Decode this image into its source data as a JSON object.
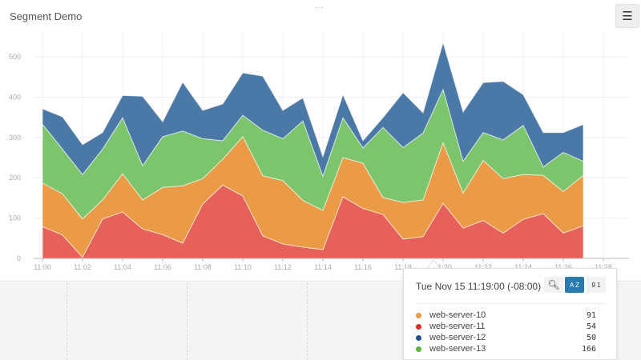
{
  "header": {
    "title": "Segment Demo",
    "menu_icon": "hamburger-icon",
    "drag_handle": "..."
  },
  "colors": {
    "web-server-10": "#eb9a45",
    "web-server-11": "#e8605a",
    "web-server-12": "#4a79a7",
    "web-server-13": "#7dc56c"
  },
  "chart_data": {
    "type": "area",
    "stacked": true,
    "grid": true,
    "x": [
      "11:00",
      "11:01",
      "11:02",
      "11:03",
      "11:04",
      "11:05",
      "11:06",
      "11:07",
      "11:08",
      "11:09",
      "11:10",
      "11:11",
      "11:12",
      "11:13",
      "11:14",
      "11:15",
      "11:16",
      "11:17",
      "11:18",
      "11:19",
      "11:20",
      "11:21",
      "11:22",
      "11:23",
      "11:24",
      "11:25",
      "11:26",
      "11:27"
    ],
    "x_ticks": [
      "11:00",
      "11:02",
      "11:04",
      "11:06",
      "11:08",
      "11:10",
      "11:12",
      "11:14",
      "11:16",
      "11:18",
      "11:20",
      "11:22",
      "11:24",
      "11:26",
      "11:28"
    ],
    "y_ticks": [
      0,
      100,
      200,
      300,
      400,
      500
    ],
    "ylim": [
      0,
      550
    ],
    "series": [
      {
        "name": "web-server-11",
        "color": "#e8605a",
        "values": [
          79,
          58,
          3,
          98,
          115,
          73,
          59,
          38,
          135,
          182,
          155,
          56,
          36,
          28,
          22,
          153,
          124,
          109,
          48,
          54,
          137,
          75,
          94,
          63,
          97,
          111,
          63,
          81
        ]
      },
      {
        "name": "web-server-10",
        "color": "#eb9a45",
        "values": [
          108,
          102,
          95,
          47,
          95,
          72,
          117,
          142,
          63,
          64,
          147,
          149,
          157,
          116,
          97,
          97,
          112,
          42,
          91,
          91,
          150,
          87,
          149,
          135,
          111,
          95,
          103,
          125
        ]
      },
      {
        "name": "web-server-13",
        "color": "#7dc56c",
        "values": [
          146,
          111,
          110,
          126,
          139,
          85,
          126,
          136,
          99,
          46,
          53,
          113,
          104,
          197,
          85,
          99,
          38,
          174,
          136,
          166,
          132,
          79,
          69,
          96,
          122,
          21,
          97,
          35
        ]
      },
      {
        "name": "web-server-12",
        "color": "#4a79a7",
        "values": [
          38,
          80,
          74,
          41,
          55,
          172,
          37,
          121,
          70,
          91,
          105,
          134,
          70,
          57,
          48,
          57,
          18,
          24,
          136,
          50,
          116,
          122,
          124,
          145,
          76,
          85,
          49,
          91
        ]
      }
    ]
  },
  "tooltip": {
    "date": "Tue Nov 15 11:19:00 (-08:00)",
    "hover_index": 19,
    "buttons": {
      "search_icon": "search-icon",
      "sort_alpha_label": "A Z",
      "sort_num_label": "9 1"
    },
    "rows": [
      {
        "name": "web-server-10",
        "value": "91",
        "color": "#eb9a45"
      },
      {
        "name": "web-server-11",
        "value": "54",
        "color": "#e8605a"
      },
      {
        "name": "web-server-12",
        "value": "50",
        "color": "#4a79a7"
      },
      {
        "name": "web-server-13",
        "value": "166",
        "color": "#7dc56c"
      }
    ]
  }
}
